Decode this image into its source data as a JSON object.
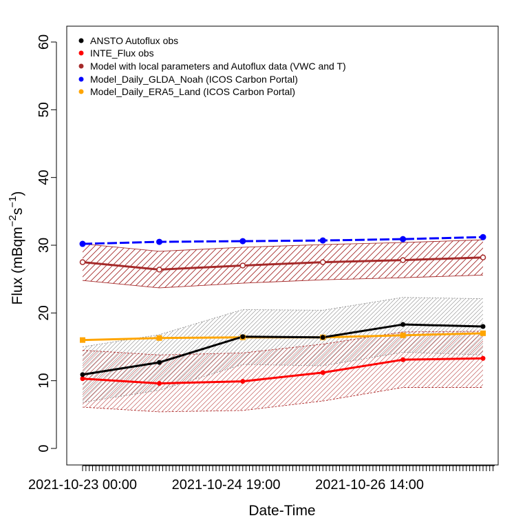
{
  "chart_data": {
    "type": "line",
    "xlabel": "Date-Time",
    "ylabel": "Flux (mBqm",
    "ylabel_sup1": "−2",
    "ylabel_mid": "s",
    "ylabel_sup2": "−1",
    "ylabel_end": ")",
    "ylim": [
      0,
      60
    ],
    "yticks": [
      0,
      10,
      20,
      30,
      40,
      50,
      60
    ],
    "xlim": [
      0,
      120
    ],
    "x_tick_labels": [
      {
        "label": "2021-10-23 00:00",
        "x": 0
      },
      {
        "label": "2021-10-24 19:00",
        "x": 43
      },
      {
        "label": "2021-10-26 14:00",
        "x": 86
      }
    ],
    "x": [
      0,
      23,
      48,
      72,
      96,
      120
    ],
    "legend_position": "top-left",
    "series": [
      {
        "name": "ANSTO Autoflux obs",
        "color": "#000000",
        "values": [
          10.9,
          12.7,
          16.5,
          16.4,
          18.3,
          18.0
        ],
        "band_lower": [
          6.8,
          8.6,
          12.4,
          12.2,
          14.2,
          13.8
        ],
        "band_upper": [
          15.0,
          16.8,
          20.5,
          20.4,
          22.3,
          22.1
        ],
        "band_color": "#909090"
      },
      {
        "name": "INTE_Flux obs",
        "color": "#ff0000",
        "values": [
          10.3,
          9.6,
          9.9,
          11.2,
          13.1,
          13.3
        ],
        "band_lower": [
          6.1,
          5.4,
          5.6,
          7.0,
          9.0,
          9.0
        ],
        "band_upper": [
          14.5,
          13.8,
          14.1,
          15.4,
          17.2,
          17.3
        ],
        "band_color": "#b03030"
      },
      {
        "name": "Model with local parameters and Autoflux data (VWC and T)",
        "color": "#a52a2a",
        "values": [
          27.5,
          26.4,
          27.0,
          27.5,
          27.8,
          28.2
        ],
        "band_lower": [
          24.8,
          23.7,
          24.4,
          24.9,
          25.2,
          25.6
        ],
        "band_upper": [
          30.2,
          29.1,
          29.7,
          30.1,
          30.4,
          30.8
        ],
        "band_color": "#a52a2a"
      },
      {
        "name": "Model_Daily_GLDA_Noah (ICOS Carbon Portal)",
        "color": "#0000ff",
        "values": [
          30.2,
          30.5,
          30.6,
          30.7,
          30.9,
          31.2
        ]
      },
      {
        "name": "Model_Daily_ERA5_Land (ICOS Carbon Portal)",
        "color": "#ffa500",
        "values": [
          16.0,
          16.3,
          16.4,
          16.4,
          16.7,
          17.0
        ]
      }
    ]
  }
}
